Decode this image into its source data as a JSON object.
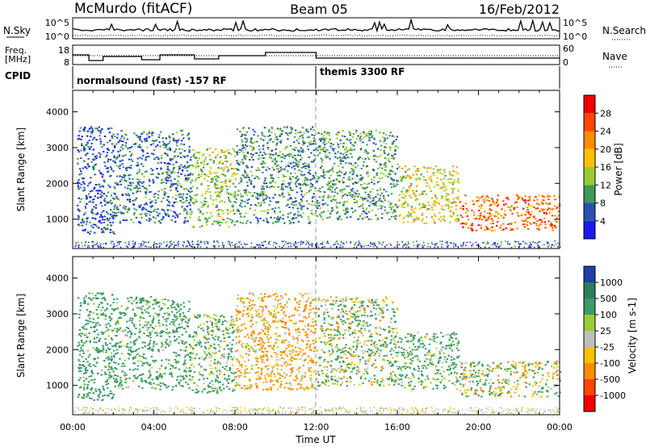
{
  "header": {
    "station": "McMurdo (fitACF)",
    "beam": "Beam 05",
    "date": "16/Feb/2012"
  },
  "top_panels": {
    "nsky_label": "N.Sky",
    "nsearch_label": "N.Search",
    "noise_ticks": [
      "10^5",
      "10^0"
    ],
    "freq_label_line1": "Freq.",
    "freq_label_line2": "[MHz]",
    "freq_ticks": [
      "18",
      "8"
    ],
    "nave_label": "Nave",
    "nave_ticks": [
      "60",
      "0"
    ],
    "cpid_label": "CPID",
    "cpid_segments": [
      {
        "name": "normalsound (fast) -157 RF",
        "start_hour": 0,
        "end_hour": 12
      },
      {
        "name": "themis 3300 RF",
        "start_hour": 12,
        "end_hour": 24
      }
    ]
  },
  "chart_data": [
    {
      "type": "heatmap",
      "name": "power-panel",
      "x_range_hours": [
        0,
        24
      ],
      "xticks": [
        "00:00",
        "04:00",
        "08:00",
        "12:00",
        "16:00",
        "20:00",
        "00:00"
      ],
      "ylabel": "Slant Range [km]",
      "ylim": [
        180,
        4600
      ],
      "yticks": [
        1000,
        2000,
        3000,
        4000
      ],
      "colorbar": {
        "label": "Power [dB]",
        "range": [
          0,
          32
        ],
        "ticks": [
          4,
          8,
          12,
          16,
          20,
          24,
          28
        ],
        "colors": [
          "#1a1aee",
          "#2a4fb8",
          "#3f9a5a",
          "#9acd32",
          "#ffc000",
          "#ff8c00",
          "#ff4500",
          "#ee0000"
        ]
      },
      "echo_regions": [
        {
          "t0": 0.2,
          "t1": 2.0,
          "r0": 600,
          "r1": 3600,
          "level": 6
        },
        {
          "t0": 2.0,
          "t1": 5.8,
          "r0": 900,
          "r1": 3500,
          "level": 8
        },
        {
          "t0": 5.8,
          "t1": 8.0,
          "r0": 800,
          "r1": 3000,
          "level": 13
        },
        {
          "t0": 8.0,
          "t1": 12.0,
          "r0": 900,
          "r1": 3600,
          "level": 9
        },
        {
          "t0": 12.0,
          "t1": 16.0,
          "r0": 1000,
          "r1": 3500,
          "level": 10
        },
        {
          "t0": 16.0,
          "t1": 19.0,
          "r0": 900,
          "r1": 2500,
          "level": 16
        },
        {
          "t0": 19.0,
          "t1": 24.0,
          "r0": 700,
          "r1": 1700,
          "level": 24
        }
      ]
    },
    {
      "type": "heatmap",
      "name": "velocity-panel",
      "x_range_hours": [
        0,
        24
      ],
      "xticks": [
        "00:00",
        "04:00",
        "08:00",
        "12:00",
        "16:00",
        "20:00",
        "00:00"
      ],
      "xlabel": "Time UT",
      "ylabel": "Slant Range [km]",
      "ylim": [
        180,
        4600
      ],
      "yticks": [
        1000,
        2000,
        3000,
        4000
      ],
      "colorbar": {
        "label": "Velocity [m s-1]",
        "tick_labels": [
          "1000",
          "500",
          "100",
          "25",
          "-25",
          "-100",
          "-500",
          "-1000"
        ],
        "colors": [
          "#1f3faa",
          "#2e7d5e",
          "#3d9a6a",
          "#9acd32",
          "#bfbfbf",
          "#ffc000",
          "#ff8c00",
          "#ff4500",
          "#ee0000"
        ]
      },
      "echo_regions": [
        {
          "t0": 0.2,
          "t1": 2.0,
          "r0": 600,
          "r1": 3600,
          "velocity": 300
        },
        {
          "t0": 2.0,
          "t1": 5.8,
          "r0": 900,
          "r1": 3500,
          "velocity": 250
        },
        {
          "t0": 5.8,
          "t1": 8.0,
          "r0": 800,
          "r1": 3000,
          "velocity": 150
        },
        {
          "t0": 8.0,
          "t1": 12.0,
          "r0": 900,
          "r1": 3600,
          "velocity": -150
        },
        {
          "t0": 12.0,
          "t1": 16.0,
          "r0": 1000,
          "r1": 3500,
          "velocity": 100
        },
        {
          "t0": 16.0,
          "t1": 19.0,
          "r0": 900,
          "r1": 2500,
          "velocity": 200
        },
        {
          "t0": 19.0,
          "t1": 24.0,
          "r0": 700,
          "r1": 1700,
          "velocity": 60
        }
      ]
    }
  ]
}
